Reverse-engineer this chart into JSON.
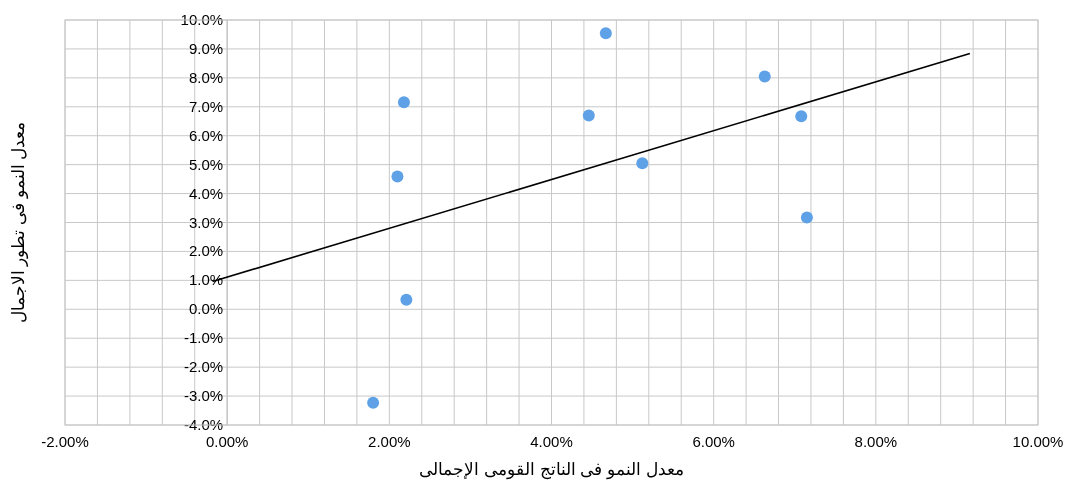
{
  "chart_data": {
    "type": "scatter",
    "xlabel": "معدل النمو فى الناتج القومى الإجمالى",
    "ylabel": "معدل النمو فى تطور الاجمال",
    "series": [
      {
        "color": "#5ea1e6",
        "marker": "circle",
        "x": [
          2.18,
          2.1,
          2.21,
          1.8,
          4.67,
          4.46,
          5.12,
          6.63,
          7.08,
          7.15
        ],
        "values": [
          7.16,
          4.59,
          0.33,
          -3.23,
          9.54,
          6.7,
          5.05,
          8.05,
          6.67,
          3.17
        ]
      },
      {
        "type": "line",
        "color": "#000000",
        "marker": "none",
        "x": [
          -0.18,
          9.16
        ],
        "values": [
          0.96,
          8.84
        ]
      }
    ],
    "xlim": [
      -2,
      10
    ],
    "ylim": [
      -4,
      10
    ],
    "xticks": [
      {
        "value": -2,
        "label": "-2.00%"
      },
      {
        "value": -1.6,
        "label": null
      },
      {
        "value": -1.2,
        "label": null
      },
      {
        "value": -0.8,
        "label": null
      },
      {
        "value": -0.4,
        "label": null
      },
      {
        "value": 0,
        "label": "0.00%"
      },
      {
        "value": 0.4,
        "label": null
      },
      {
        "value": 0.8,
        "label": null
      },
      {
        "value": 1.2,
        "label": null
      },
      {
        "value": 1.6,
        "label": null
      },
      {
        "value": 2,
        "label": "2.00%"
      },
      {
        "value": 2.4,
        "label": null
      },
      {
        "value": 2.8,
        "label": null
      },
      {
        "value": 3.2,
        "label": null
      },
      {
        "value": 3.6,
        "label": null
      },
      {
        "value": 4,
        "label": "4.00%"
      },
      {
        "value": 4.4,
        "label": null
      },
      {
        "value": 4.8,
        "label": null
      },
      {
        "value": 5.2,
        "label": null
      },
      {
        "value": 5.6,
        "label": null
      },
      {
        "value": 6,
        "label": "6.00%"
      },
      {
        "value": 6.4,
        "label": null
      },
      {
        "value": 6.8,
        "label": null
      },
      {
        "value": 7.2,
        "label": null
      },
      {
        "value": 7.6,
        "label": null
      },
      {
        "value": 8,
        "label": "8.00%"
      },
      {
        "value": 8.4,
        "label": null
      },
      {
        "value": 8.8,
        "label": null
      },
      {
        "value": 9.2,
        "label": null
      },
      {
        "value": 9.6,
        "label": null
      },
      {
        "value": 10,
        "label": "10.00%"
      }
    ],
    "yticks": [
      {
        "value": -4,
        "label": "-4.0%"
      },
      {
        "value": -3,
        "label": "-3.0%"
      },
      {
        "value": -2,
        "label": "-2.0%"
      },
      {
        "value": -1,
        "label": "-1.0%"
      },
      {
        "value": 0,
        "label": "0.0%"
      },
      {
        "value": 1,
        "label": "1.0%"
      },
      {
        "value": 2,
        "label": "2.0%"
      },
      {
        "value": 3,
        "label": "3.0%"
      },
      {
        "value": 4,
        "label": "4.0%"
      },
      {
        "value": 5,
        "label": "5.0%"
      },
      {
        "value": 6,
        "label": "6.0%"
      },
      {
        "value": 7,
        "label": "7.0%"
      },
      {
        "value": 8,
        "label": "8.0%"
      },
      {
        "value": 9,
        "label": "9.0%"
      },
      {
        "value": 10,
        "label": "10.0%"
      }
    ],
    "grid": true
  }
}
